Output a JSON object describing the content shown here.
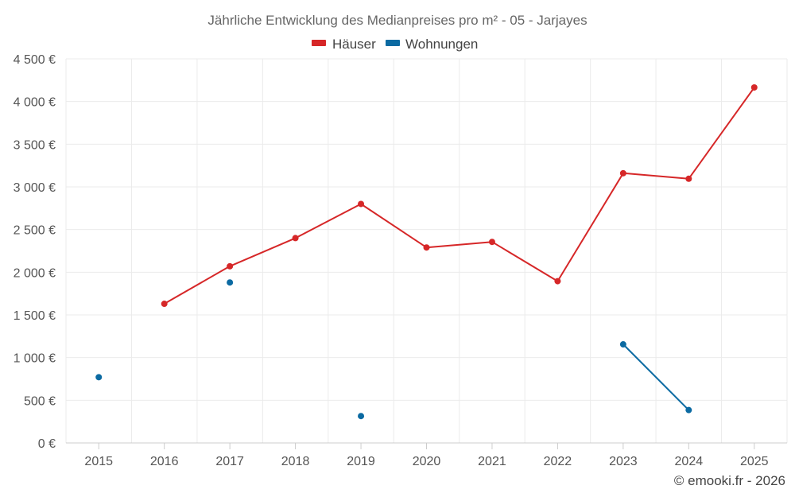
{
  "chart_data": {
    "type": "line",
    "title": "Jährliche Entwicklung des Medianpreises pro m² - 05 - Jarjayes",
    "categories": [
      "2015",
      "2016",
      "2017",
      "2018",
      "2019",
      "2020",
      "2021",
      "2022",
      "2023",
      "2024",
      "2025"
    ],
    "y_ticks": [
      "0 €",
      "500 €",
      "1 000 €",
      "1 500 €",
      "2 000 €",
      "2 500 €",
      "3 000 €",
      "3 500 €",
      "4 000 €",
      "4 500 €"
    ],
    "ylim": [
      0,
      4500
    ],
    "y_step": 500,
    "grid": true,
    "legend_position": "top-center",
    "series": [
      {
        "name": "Häuser",
        "color": "#d62728",
        "values": [
          null,
          1630,
          2070,
          2400,
          2800,
          2290,
          2355,
          1895,
          3160,
          3095,
          4165
        ]
      },
      {
        "name": "Wohnungen",
        "color": "#0b6aa2",
        "values": [
          770,
          null,
          1880,
          null,
          315,
          null,
          null,
          null,
          1155,
          385,
          null
        ]
      }
    ],
    "credit": "© emooki.fr - 2026"
  }
}
